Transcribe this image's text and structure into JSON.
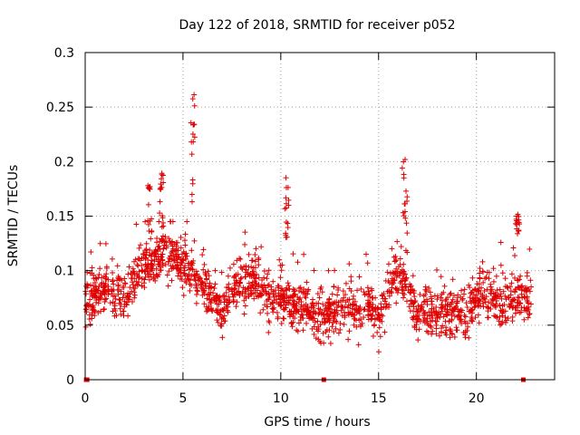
{
  "chart_data": {
    "type": "scatter",
    "title": "Day 122 of 2018, SRMTID for receiver p052",
    "xlabel": "GPS time / hours",
    "ylabel": "SRMTID / TECUs",
    "xlim": [
      0,
      24
    ],
    "ylim": [
      0,
      0.3
    ],
    "x_ticks": [
      0,
      5,
      10,
      15,
      20
    ],
    "x_tick_labels": [
      "0",
      "5",
      "10",
      "15",
      "20"
    ],
    "y_ticks": [
      0,
      0.05,
      0.1,
      0.15,
      0.2,
      0.25,
      0.3
    ],
    "y_tick_labels": [
      "0",
      "0.05",
      "0.1",
      "0.15",
      "0.2",
      "0.25",
      "0.3"
    ],
    "grid": true,
    "marker": "plus",
    "series": [
      {
        "name": "SRMTID",
        "color": "#e00000",
        "baseline": [
          [
            0.0,
            0.07
          ],
          [
            1.0,
            0.085
          ],
          [
            2.0,
            0.075
          ],
          [
            2.5,
            0.09
          ],
          [
            3.0,
            0.105
          ],
          [
            3.5,
            0.11
          ],
          [
            4.0,
            0.12
          ],
          [
            4.5,
            0.11
          ],
          [
            5.0,
            0.105
          ],
          [
            5.5,
            0.1
          ],
          [
            6.0,
            0.09
          ],
          [
            6.5,
            0.075
          ],
          [
            7.0,
            0.065
          ],
          [
            7.5,
            0.08
          ],
          [
            8.0,
            0.09
          ],
          [
            8.5,
            0.095
          ],
          [
            9.0,
            0.085
          ],
          [
            9.5,
            0.075
          ],
          [
            10.0,
            0.075
          ],
          [
            10.5,
            0.07
          ],
          [
            11.0,
            0.065
          ],
          [
            11.5,
            0.065
          ],
          [
            12.0,
            0.055
          ],
          [
            12.5,
            0.06
          ],
          [
            13.0,
            0.065
          ],
          [
            14.0,
            0.065
          ],
          [
            14.5,
            0.07
          ],
          [
            15.0,
            0.055
          ],
          [
            15.5,
            0.085
          ],
          [
            16.0,
            0.095
          ],
          [
            16.5,
            0.085
          ],
          [
            17.0,
            0.06
          ],
          [
            17.5,
            0.065
          ],
          [
            18.0,
            0.06
          ],
          [
            19.0,
            0.06
          ],
          [
            19.5,
            0.055
          ],
          [
            20.0,
            0.08
          ],
          [
            20.5,
            0.075
          ],
          [
            21.0,
            0.07
          ],
          [
            21.5,
            0.07
          ],
          [
            22.0,
            0.075
          ],
          [
            22.5,
            0.075
          ],
          [
            22.8,
            0.07
          ]
        ],
        "spread": 0.022,
        "n_points": 1800,
        "t_range": [
          0,
          22.8
        ],
        "peaks": [
          {
            "x": [
              3.2,
              3.4
            ],
            "y": [
              0.12,
              0.18
            ]
          },
          {
            "x": [
              3.8,
              4.0
            ],
            "y": [
              0.14,
              0.19
            ]
          },
          {
            "x": [
              5.4,
              5.6
            ],
            "y": [
              0.16,
              0.262
            ]
          },
          {
            "x": [
              10.2,
              10.4
            ],
            "y": [
              0.13,
              0.188
            ]
          },
          {
            "x": [
              16.2,
              16.5
            ],
            "y": [
              0.13,
              0.205
            ]
          },
          {
            "x": [
              22.0,
              22.2
            ],
            "y": [
              0.13,
              0.152
            ]
          }
        ],
        "zero_points": [
          0.05,
          0.1,
          12.2,
          22.4
        ]
      }
    ]
  }
}
